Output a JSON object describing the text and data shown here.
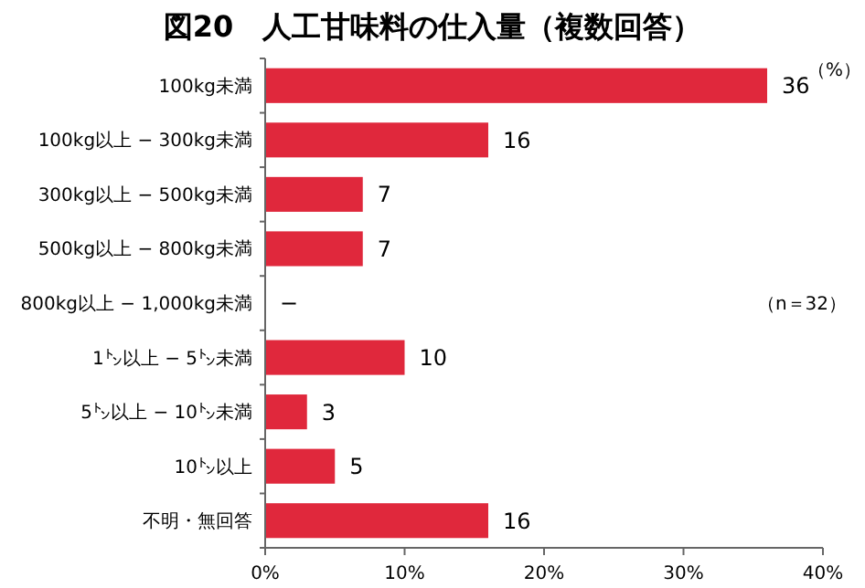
{
  "chart_data": {
    "type": "bar",
    "orientation": "horizontal",
    "title": "図20　人工甘味料の仕入量（複数回答）",
    "categories": [
      "100kg未満",
      "100kg以上 − 300kg未満",
      "300kg以上 − 500kg未満",
      "500kg以上 − 800kg未満",
      "800kg以上 − 1,000kg未満",
      "1㌧以上 − 5㌧未満",
      "5㌧以上 − 10㌧未満",
      "10㌧以上",
      "不明・無回答"
    ],
    "values": [
      36,
      16,
      7,
      7,
      0,
      10,
      3,
      5,
      16
    ],
    "value_labels": [
      "36",
      "16",
      "7",
      "7",
      "−",
      "10",
      "3",
      "5",
      "16"
    ],
    "color": "#e0283c",
    "xlim": [
      0,
      40
    ],
    "xticks": [
      {
        "value": 0,
        "label": "0%"
      },
      {
        "value": 10,
        "label": "10%"
      },
      {
        "value": 20,
        "label": "20%"
      },
      {
        "value": 30,
        "label": "30%"
      },
      {
        "value": 40,
        "label": "40%"
      }
    ],
    "annotations": [
      "（%）",
      "（n＝32）"
    ],
    "grid": false
  }
}
